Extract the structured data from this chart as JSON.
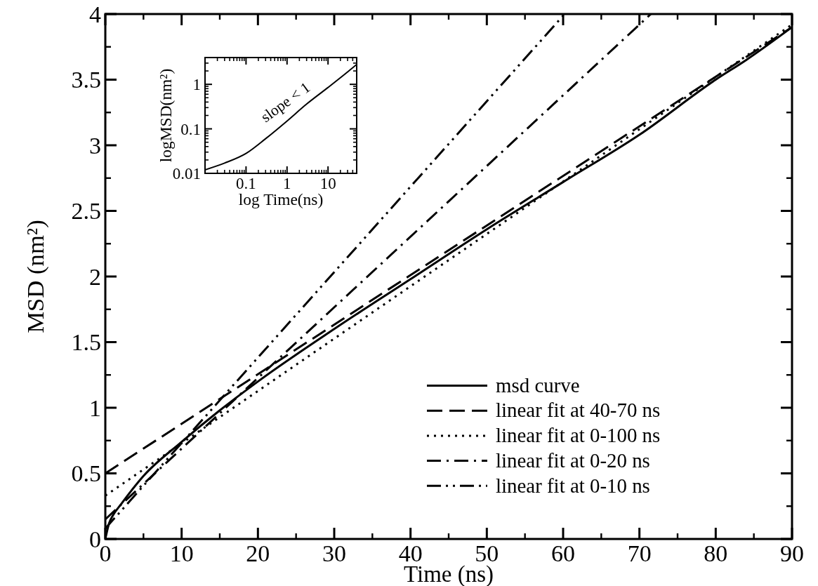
{
  "chart_data": [
    {
      "type": "line",
      "xlabel": "Time (ns)",
      "ylabel": "MSD (nm²)",
      "xlim": [
        0,
        90
      ],
      "ylim": [
        0,
        4
      ],
      "xticks": [
        0,
        10,
        20,
        30,
        40,
        50,
        60,
        70,
        80,
        90
      ],
      "yticks": [
        0,
        0.5,
        1,
        1.5,
        2,
        2.5,
        3,
        3.5,
        4
      ],
      "legend": "bottom right",
      "grid": false,
      "series": [
        {
          "name": "msd curve",
          "color": "#000000",
          "line_style": "solid",
          "x": [
            0,
            0.5,
            1,
            2,
            5,
            10,
            15,
            20,
            30,
            40,
            50,
            60,
            70,
            80,
            84,
            90
          ],
          "values": [
            0,
            0.12,
            0.18,
            0.26,
            0.48,
            0.74,
            0.98,
            1.2,
            1.6,
            1.98,
            2.36,
            2.72,
            3.08,
            3.5,
            3.65,
            3.9
          ]
        },
        {
          "name": "linear fit at 40-70 ns",
          "color": "#000000",
          "line_style": "dashed",
          "x": [
            0,
            90
          ],
          "values": [
            0.5,
            3.9
          ]
        },
        {
          "name": "linear fit at 0-100 ns",
          "color": "#000000",
          "line_style": "dotted",
          "x": [
            0,
            90
          ],
          "values": [
            0.33,
            3.92
          ]
        },
        {
          "name": "linear fit at 0-20 ns",
          "color": "#000000",
          "line_style": "dash-dot",
          "x": [
            0,
            71.5
          ],
          "values": [
            0.15,
            4
          ]
        },
        {
          "name": "linear fit at 0-10 ns",
          "color": "#000000",
          "line_style": "dash-dot-dot",
          "x": [
            0,
            60.2
          ],
          "values": [
            0.08,
            4
          ]
        }
      ]
    },
    {
      "type": "line",
      "xlabel": "log Time(ns)",
      "ylabel": "logMSD(nm²)",
      "log": "xy",
      "xlim": [
        0.01,
        50
      ],
      "ylim": [
        0.01,
        4
      ],
      "xticks": [
        0.1,
        1,
        10
      ],
      "yticks": [
        0.01,
        0.1,
        1
      ],
      "grid": false,
      "annotations": [
        "slope < 1"
      ],
      "series": [
        {
          "color": "#000000",
          "line_style": "solid",
          "x": [
            0.01,
            0.03,
            0.1,
            0.3,
            1,
            3,
            10,
            30,
            50
          ],
          "values": [
            0.012,
            0.017,
            0.028,
            0.06,
            0.15,
            0.36,
            0.85,
            1.9,
            2.8
          ]
        }
      ]
    }
  ]
}
